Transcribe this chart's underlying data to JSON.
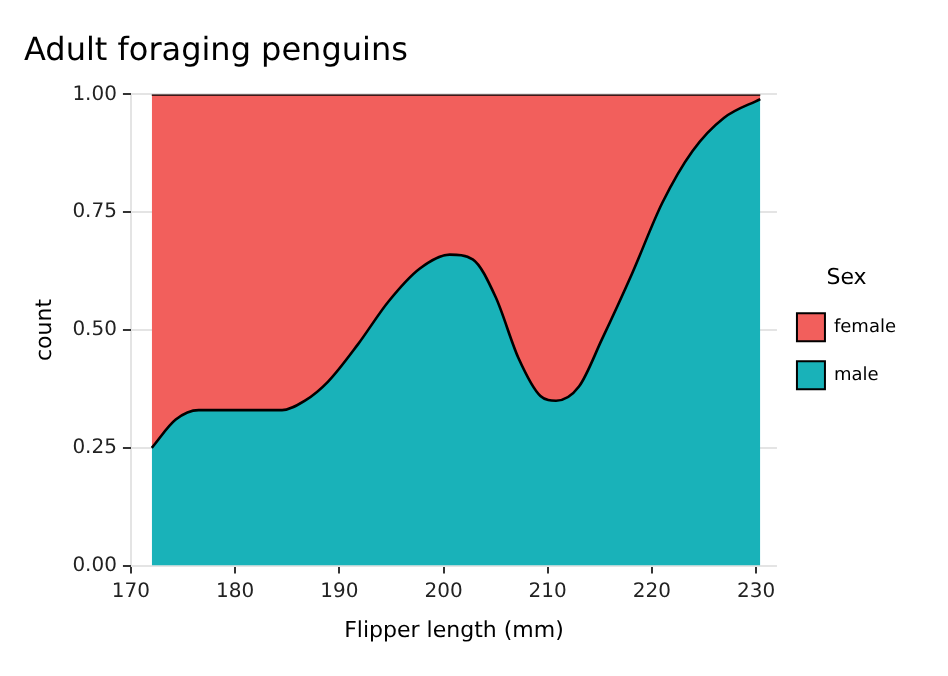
{
  "chart_data": {
    "type": "area",
    "title": "Adult foraging penguins",
    "xlabel": "Flipper length (mm)",
    "ylabel": "count",
    "legend_title": "Sex",
    "stacked": true,
    "x": [
      172,
      174.3,
      176.5,
      179,
      181.6,
      184.5,
      186.7,
      188.9,
      191.8,
      194.7,
      197.7,
      200.6,
      202.8,
      205,
      207.2,
      209.3,
      210.8,
      213,
      215.2,
      218.1,
      221,
      223.9,
      226.9,
      230.4
    ],
    "series": [
      {
        "name": "male",
        "color": "#19b2b9",
        "values": [
          0.25,
          0.31,
          0.33,
          0.33,
          0.33,
          0.33,
          0.35,
          0.39,
          0.47,
          0.56,
          0.63,
          0.66,
          0.65,
          0.57,
          0.44,
          0.36,
          0.35,
          0.38,
          0.48,
          0.62,
          0.77,
          0.88,
          0.95,
          0.99
        ]
      },
      {
        "name": "female",
        "color": "#f25f5c",
        "values": [
          0.75,
          0.69,
          0.67,
          0.67,
          0.67,
          0.67,
          0.65,
          0.61,
          0.53,
          0.44,
          0.37,
          0.34,
          0.35,
          0.43,
          0.56,
          0.64,
          0.65,
          0.62,
          0.52,
          0.38,
          0.23,
          0.12,
          0.05,
          0.01
        ]
      }
    ],
    "xlim": [
      170,
      232
    ],
    "xticks": [
      170,
      180,
      190,
      200,
      210,
      220,
      230
    ],
    "ylim": [
      0,
      1
    ],
    "yticks": [
      {
        "value": 0,
        "label": "0.00"
      },
      {
        "value": 0.25,
        "label": "0.25"
      },
      {
        "value": 0.5,
        "label": "0.50"
      },
      {
        "value": 0.75,
        "label": "0.75"
      },
      {
        "value": 1,
        "label": "1.00"
      }
    ],
    "grid": true,
    "legend": "right"
  }
}
